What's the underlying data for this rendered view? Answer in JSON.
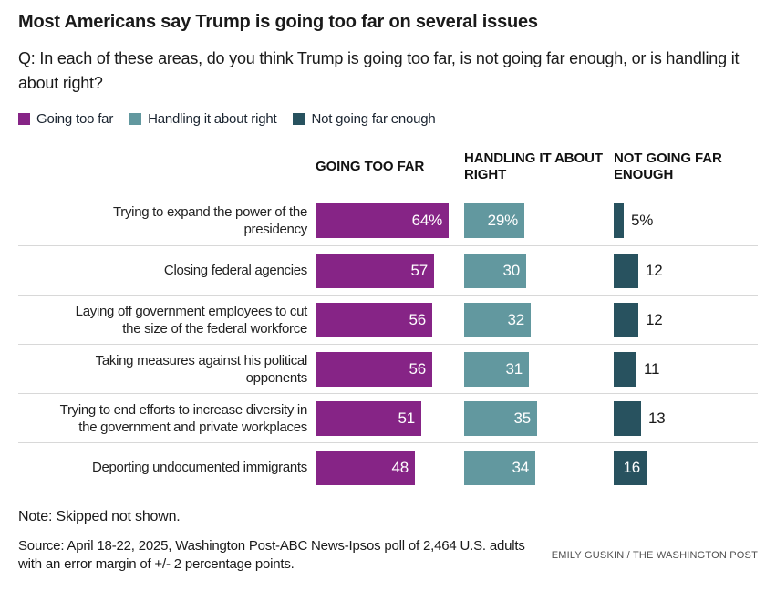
{
  "title": "Most Americans say Trump is going too far on several issues",
  "subtitle": "Q: In each of these areas, do you think Trump is going too far, is not going far enough, or is handling it about right?",
  "legend": [
    {
      "label": "Going too far",
      "color": "#862486"
    },
    {
      "label": "Handling it about right",
      "color": "#62989f"
    },
    {
      "label": "Not going far enough",
      "color": "#28525f"
    }
  ],
  "columns": [
    "GOING TOO FAR",
    "HANDLING IT ABOUT RIGHT",
    "NOT GOING FAR ENOUGH"
  ],
  "chart_data": {
    "type": "bar",
    "orientation": "horizontal",
    "unit": "percent",
    "xlim": [
      0,
      70
    ],
    "grid": false,
    "legend_position": "top-left",
    "series": [
      {
        "name": "Going too far",
        "color": "#862486"
      },
      {
        "name": "Handling it about right",
        "color": "#62989f"
      },
      {
        "name": "Not going far enough",
        "color": "#28525f"
      }
    ],
    "rows": [
      {
        "category": "Trying to expand the power of the presidency",
        "label_lines": [
          "Trying to expand the power of the",
          "presidency"
        ],
        "values": [
          64,
          29,
          5
        ],
        "labels": [
          "64%",
          "29%",
          "5%"
        ]
      },
      {
        "category": "Closing federal agencies",
        "label_lines": [
          "Closing federal agencies"
        ],
        "values": [
          57,
          30,
          12
        ],
        "labels": [
          "57",
          "30",
          "12"
        ]
      },
      {
        "category": "Laying off government employees to cut the size of the federal workforce",
        "label_lines": [
          "Laying off government employees to cut",
          "the size of the federal workforce"
        ],
        "values": [
          56,
          32,
          12
        ],
        "labels": [
          "56",
          "32",
          "12"
        ]
      },
      {
        "category": "Taking measures against his political opponents",
        "label_lines": [
          "Taking measures against his political",
          "opponents"
        ],
        "values": [
          56,
          31,
          11
        ],
        "labels": [
          "56",
          "31",
          "11"
        ]
      },
      {
        "category": "Trying to end efforts to increase diversity in the government and private workplaces",
        "label_lines": [
          "Trying to end efforts to increase diversity in",
          "the government and private workplaces"
        ],
        "values": [
          51,
          35,
          13
        ],
        "labels": [
          "51",
          "35",
          "13"
        ]
      },
      {
        "category": "Deporting undocumented immigrants",
        "label_lines": [
          "Deporting undocumented immigrants"
        ],
        "values": [
          48,
          34,
          16
        ],
        "labels": [
          "48",
          "34",
          "16"
        ]
      }
    ]
  },
  "note": "Note: Skipped not shown.",
  "source": "Source: April 18-22, 2025, Washington Post-ABC News-Ipsos poll of 2,464 U.S. adults with an error margin of +/- 2 percentage points.",
  "credit": "EMILY GUSKIN / THE WASHINGTON POST"
}
